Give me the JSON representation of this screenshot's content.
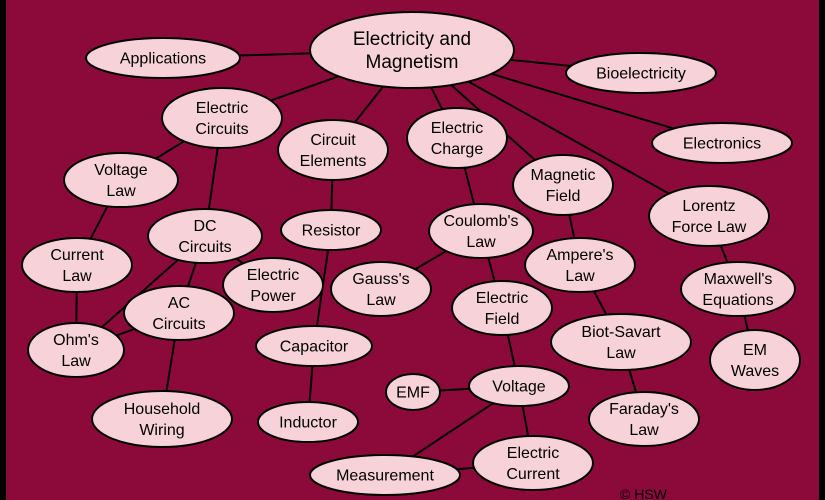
{
  "diagram": {
    "nodes": [
      {
        "id": "em",
        "lines": [
          "Electricity and",
          "Magnetism"
        ],
        "big": true
      },
      {
        "id": "applications",
        "lines": [
          "Applications"
        ]
      },
      {
        "id": "bioelectricity",
        "lines": [
          "Bioelectricity"
        ]
      },
      {
        "id": "electric-circuits",
        "lines": [
          "Electric",
          "Circuits"
        ]
      },
      {
        "id": "circuit-elements",
        "lines": [
          "Circuit",
          "Elements"
        ]
      },
      {
        "id": "electric-charge",
        "lines": [
          "Electric",
          "Charge"
        ]
      },
      {
        "id": "electronics",
        "lines": [
          "Electronics"
        ]
      },
      {
        "id": "voltage-law",
        "lines": [
          "Voltage",
          "Law"
        ]
      },
      {
        "id": "magnetic-field",
        "lines": [
          "Magnetic",
          "Field"
        ]
      },
      {
        "id": "lorentz",
        "lines": [
          "Lorentz",
          "Force Law"
        ]
      },
      {
        "id": "dc-circuits",
        "lines": [
          "DC",
          "Circuits"
        ]
      },
      {
        "id": "resistor",
        "lines": [
          "Resistor"
        ]
      },
      {
        "id": "coulombs-law",
        "lines": [
          "Coulomb's",
          "Law"
        ]
      },
      {
        "id": "current-law",
        "lines": [
          "Current",
          "Law"
        ]
      },
      {
        "id": "electric-power",
        "lines": [
          "Electric",
          "Power"
        ]
      },
      {
        "id": "gauss",
        "lines": [
          "Gauss's",
          "Law"
        ]
      },
      {
        "id": "amperes-law",
        "lines": [
          "Ampere's",
          "Law"
        ]
      },
      {
        "id": "maxwell",
        "lines": [
          "Maxwell's",
          "Equations"
        ]
      },
      {
        "id": "ac-circuits",
        "lines": [
          "AC",
          "Circuits"
        ]
      },
      {
        "id": "electric-field",
        "lines": [
          "Electric",
          "Field"
        ]
      },
      {
        "id": "ohms-law",
        "lines": [
          "Ohm's",
          "Law"
        ]
      },
      {
        "id": "capacitor",
        "lines": [
          "Capacitor"
        ]
      },
      {
        "id": "biot-savart",
        "lines": [
          "Biot-Savart",
          "Law"
        ]
      },
      {
        "id": "em-waves",
        "lines": [
          "EM",
          "Waves"
        ]
      },
      {
        "id": "emf",
        "lines": [
          "EMF"
        ]
      },
      {
        "id": "voltage",
        "lines": [
          "Voltage"
        ]
      },
      {
        "id": "household",
        "lines": [
          "Household",
          "Wiring"
        ]
      },
      {
        "id": "inductor",
        "lines": [
          "Inductor"
        ]
      },
      {
        "id": "faraday",
        "lines": [
          "Faraday's",
          "Law"
        ]
      },
      {
        "id": "measurement",
        "lines": [
          "Measurement"
        ]
      },
      {
        "id": "electric-current",
        "lines": [
          "Electric",
          "Current"
        ]
      }
    ],
    "edges": [
      [
        "em",
        "applications"
      ],
      [
        "em",
        "bioelectricity"
      ],
      [
        "em",
        "electric-circuits"
      ],
      [
        "em",
        "circuit-elements"
      ],
      [
        "em",
        "electric-charge"
      ],
      [
        "em",
        "electronics"
      ],
      [
        "em",
        "magnetic-field"
      ],
      [
        "em",
        "lorentz"
      ],
      [
        "electric-circuits",
        "voltage-law"
      ],
      [
        "electric-circuits",
        "dc-circuits"
      ],
      [
        "voltage-law",
        "current-law"
      ],
      [
        "current-law",
        "ohms-law"
      ],
      [
        "dc-circuits",
        "ohms-law"
      ],
      [
        "dc-circuits",
        "ac-circuits"
      ],
      [
        "dc-circuits",
        "electric-power"
      ],
      [
        "ac-circuits",
        "ohms-law"
      ],
      [
        "ac-circuits",
        "household"
      ],
      [
        "circuit-elements",
        "resistor"
      ],
      [
        "resistor",
        "capacitor"
      ],
      [
        "capacitor",
        "inductor"
      ],
      [
        "electric-charge",
        "coulombs-law"
      ],
      [
        "coulombs-law",
        "gauss"
      ],
      [
        "coulombs-law",
        "electric-field"
      ],
      [
        "electric-field",
        "voltage"
      ],
      [
        "voltage",
        "emf"
      ],
      [
        "voltage",
        "measurement"
      ],
      [
        "voltage",
        "electric-current"
      ],
      [
        "electric-current",
        "measurement"
      ],
      [
        "magnetic-field",
        "amperes-law"
      ],
      [
        "amperes-law",
        "biot-savart"
      ],
      [
        "biot-savart",
        "faraday"
      ],
      [
        "lorentz",
        "maxwell"
      ],
      [
        "maxwell",
        "em-waves"
      ]
    ]
  },
  "credit": "© HSW"
}
